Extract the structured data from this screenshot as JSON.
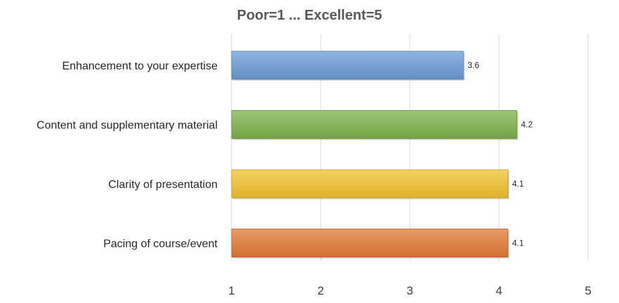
{
  "chart_data": {
    "type": "bar",
    "orientation": "horizontal",
    "title": "Poor=1 ... Excellent=5",
    "categories": [
      "Enhancement to your expertise",
      "Content and supplementary material",
      "Clarity of presentation",
      "Pacing of course/event"
    ],
    "values": [
      3.6,
      4.2,
      4.1,
      4.1
    ],
    "value_labels": [
      "3.6",
      "4.2",
      "4.1",
      "4.1"
    ],
    "xlim": [
      1,
      5
    ],
    "xticks": [
      1,
      2,
      3,
      4,
      5
    ],
    "xtick_labels": [
      "1",
      "2",
      "3",
      "4",
      "5"
    ],
    "grid": true,
    "legend": "none",
    "colors": [
      "#6b9bd6",
      "#7eb14a",
      "#f2c12e",
      "#e27a35"
    ]
  }
}
